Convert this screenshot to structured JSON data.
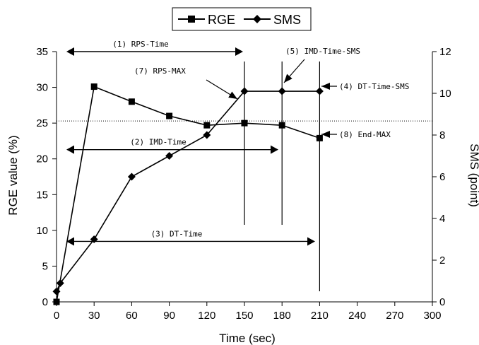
{
  "chart_data": {
    "type": "line",
    "xlabel": "Time (sec)",
    "ylabel": "RGE value (%)",
    "y2label": "SMS (point)",
    "xlim": [
      0,
      300
    ],
    "ylim": [
      0,
      35
    ],
    "y2lim": [
      0,
      12
    ],
    "x_ticks": [
      0,
      30,
      60,
      90,
      120,
      150,
      180,
      210,
      240,
      270,
      300
    ],
    "y_ticks": [
      0,
      5,
      10,
      15,
      20,
      25,
      30,
      35
    ],
    "y2_ticks": [
      0,
      2,
      4,
      6,
      8,
      10,
      12
    ],
    "grid": false,
    "legend_position": "top-center",
    "series": [
      {
        "name": "RGE",
        "axis": "left",
        "marker": "square",
        "x": [
          0,
          30,
          60,
          90,
          120,
          150,
          180,
          210
        ],
        "values": [
          0,
          30.1,
          28,
          26,
          24.7,
          25,
          24.7,
          22.9
        ]
      },
      {
        "name": "SMS",
        "axis": "right",
        "marker": "diamond",
        "x": [
          0,
          3,
          30,
          60,
          90,
          120,
          150,
          180,
          210
        ],
        "values": [
          0.5,
          0.9,
          3,
          6,
          7,
          8,
          10.1,
          10.1,
          10.1
        ]
      }
    ],
    "reference_line": {
      "axis": "left",
      "y": 25.3,
      "style": "dotted"
    },
    "vertical_markers": [
      150,
      180,
      210
    ],
    "spans": [
      {
        "label": "(1) RPS-Time",
        "from": 0,
        "to": 150,
        "y": 12
      },
      {
        "label": "(2) IMD-Time",
        "from": 0,
        "to": 180,
        "y": 7.3
      },
      {
        "label": "(3) DT-Time",
        "from": 0,
        "to": 210,
        "y": 2.9
      }
    ],
    "annotations": [
      {
        "label": "(7) RPS-MAX"
      },
      {
        "label": "(5) IMD-Time-SMS"
      },
      {
        "label": "(4) DT-Time-SMS"
      },
      {
        "label": "(8) End-MAX"
      }
    ]
  }
}
